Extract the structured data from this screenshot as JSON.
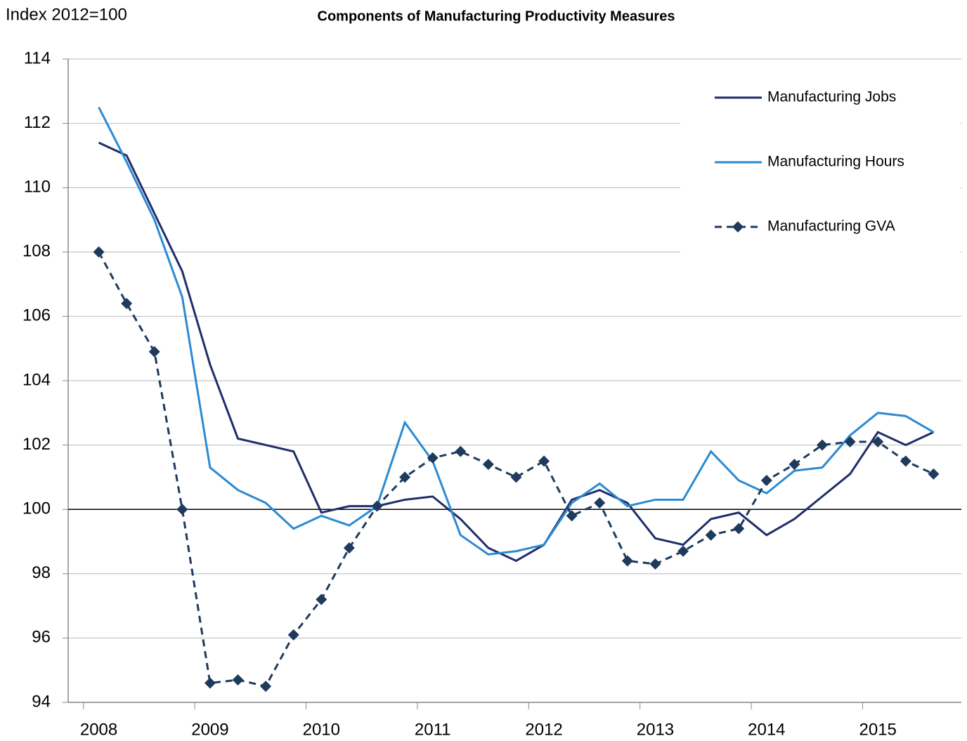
{
  "chart_data": {
    "type": "line",
    "title": "Components of Manufacturing  Productivity Measures",
    "y_label": "Index 2012=100",
    "categories": [
      "2008",
      null,
      null,
      null,
      "2009",
      null,
      null,
      null,
      "2010",
      null,
      null,
      null,
      "2011",
      null,
      null,
      null,
      "2012",
      null,
      null,
      null,
      "2013",
      null,
      null,
      null,
      "2014",
      null,
      null,
      null,
      "2015",
      null,
      null
    ],
    "series": [
      {
        "name": "Manufacturing Jobs",
        "color": "#1f2d6b",
        "linestyle": "solid",
        "marker": null,
        "values": [
          111.4,
          111.0,
          109.2,
          107.4,
          104.5,
          102.2,
          102.0,
          101.8,
          99.9,
          100.1,
          100.1,
          100.3,
          100.4,
          99.7,
          98.8,
          98.4,
          98.9,
          100.3,
          100.6,
          100.2,
          99.1,
          98.9,
          99.7,
          99.9,
          99.2,
          99.7,
          100.4,
          101.1,
          102.4,
          102.0,
          102.4
        ]
      },
      {
        "name": "Manufacturing Hours",
        "color": "#2b8ad2",
        "linestyle": "solid",
        "marker": null,
        "values": [
          112.5,
          110.8,
          109.0,
          106.6,
          101.3,
          100.6,
          100.2,
          99.4,
          99.8,
          99.5,
          100.1,
          102.7,
          101.5,
          99.2,
          98.6,
          98.7,
          98.9,
          100.2,
          100.8,
          100.1,
          100.3,
          100.3,
          101.8,
          100.9,
          100.5,
          101.2,
          101.3,
          102.3,
          103.0,
          102.9,
          102.4
        ]
      },
      {
        "name": "Manufacturing GVA",
        "color": "#1e3a5c",
        "linestyle": "dashed",
        "marker": "diamond",
        "values": [
          108.0,
          106.4,
          104.9,
          100.0,
          94.6,
          94.7,
          94.5,
          96.1,
          97.2,
          98.8,
          100.1,
          101.0,
          101.6,
          101.8,
          101.4,
          101.0,
          101.5,
          99.8,
          100.2,
          98.4,
          98.3,
          98.7,
          99.2,
          99.4,
          100.9,
          101.4,
          102.0,
          102.1,
          102.1,
          101.5,
          101.1
        ]
      }
    ],
    "ylim": [
      94,
      114
    ],
    "yticks": [
      94,
      96,
      98,
      100,
      102,
      104,
      106,
      108,
      110,
      112,
      114
    ],
    "reference_line": 100,
    "grid": true,
    "legend": "upper right"
  }
}
